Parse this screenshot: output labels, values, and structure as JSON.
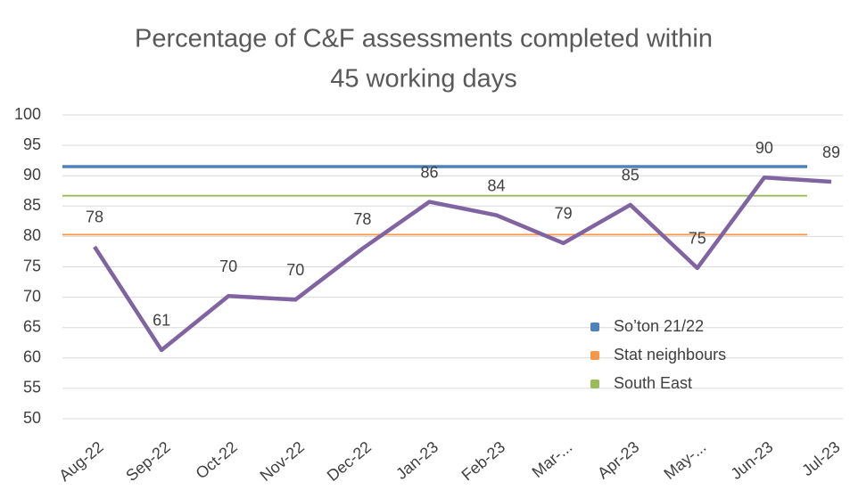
{
  "chart_data": {
    "type": "line",
    "title": [
      "Percentage of C&F assessments completed within",
      "45 working days"
    ],
    "categories": [
      "Aug-22",
      "Sep-22",
      "Oct-22",
      "Nov-22",
      "Dec-22",
      "Jan-23",
      "Feb-23",
      "Mar-...",
      "Apr-23",
      "May-...",
      "Jun-23",
      "Jul-23"
    ],
    "series": [
      {
        "color": "#8064a2",
        "values": [
          78.3,
          61.3,
          70.2,
          69.6,
          78,
          85.7,
          83.5,
          78.9,
          85.2,
          74.8,
          89.7,
          89
        ],
        "value_labels": [
          "78",
          "61",
          "70",
          "70",
          "78",
          "86",
          "84",
          "79",
          "85",
          "75",
          "90",
          "89"
        ]
      },
      {
        "name": "So’ton 21/22",
        "color": "#4f81bd",
        "values": [
          91.5,
          91.5,
          91.5,
          91.5,
          91.5,
          91.5,
          91.5,
          91.5,
          91.5,
          91.5,
          91.5,
          91.5
        ]
      },
      {
        "name": "Stat neighbours",
        "color": "#f79646",
        "values": [
          80.3,
          80.3,
          80.3,
          80.3,
          80.3,
          80.3,
          80.3,
          80.3,
          80.3,
          80.3,
          80.3,
          80.3
        ]
      },
      {
        "name": "South East",
        "color": "#9bbb59",
        "values": [
          86.7,
          86.7,
          86.7,
          86.7,
          86.7,
          86.7,
          86.7,
          86.7,
          86.7,
          86.7,
          86.7,
          86.7
        ]
      }
    ],
    "ylim": [
      50,
      100
    ],
    "yticks": [
      50,
      55,
      60,
      65,
      70,
      75,
      80,
      85,
      90,
      95,
      100
    ],
    "grid": true
  }
}
